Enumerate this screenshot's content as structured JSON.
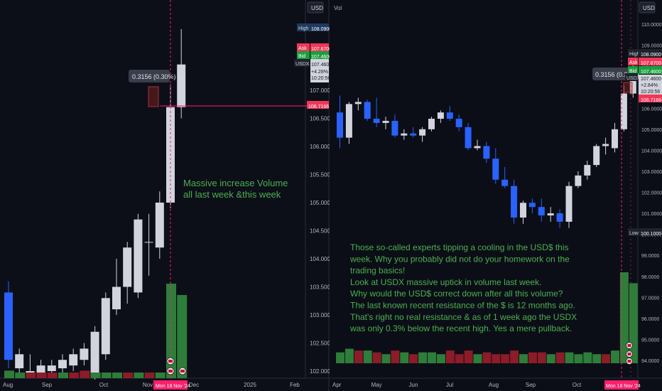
{
  "chart_data": [
    {
      "type": "candlestick",
      "title": "",
      "xlabel": "",
      "ylabel": "",
      "currency": "USD",
      "ylim": [
        101.9,
        111.1
      ],
      "y_ticks": [
        "102.0000",
        "102.5000",
        "103.0000",
        "103.5000",
        "104.0000",
        "104.5000",
        "105.0000",
        "105.5000",
        "106.0000",
        "106.5000",
        "107.0000"
      ],
      "x_ticks": [
        "Aug",
        "Sep",
        "Oct",
        "Nov",
        "Dec",
        "2025",
        "Feb"
      ],
      "x_marker": "Mon 18 Nov '24",
      "candles": [
        {
          "o": 103.4,
          "h": 103.6,
          "l": 102.05,
          "c": 102.2
        },
        {
          "o": 102.05,
          "h": 102.4,
          "l": 101.95,
          "c": 102.3
        },
        {
          "o": 101.95,
          "h": 102.3,
          "l": 101.9,
          "c": 102.0
        },
        {
          "o": 101.95,
          "h": 102.2,
          "l": 101.9,
          "c": 102.1
        },
        {
          "o": 102.0,
          "h": 102.2,
          "l": 101.9,
          "c": 102.1
        },
        {
          "o": 102.05,
          "h": 102.3,
          "l": 101.95,
          "c": 102.2
        },
        {
          "o": 102.1,
          "h": 102.4,
          "l": 102.0,
          "c": 102.3
        },
        {
          "o": 102.2,
          "h": 102.5,
          "l": 102.1,
          "c": 102.4
        },
        {
          "o": 101.9,
          "h": 102.8,
          "l": 101.85,
          "c": 102.7
        },
        {
          "o": 102.3,
          "h": 103.4,
          "l": 102.2,
          "c": 103.3
        },
        {
          "o": 103.1,
          "h": 104.0,
          "l": 103.0,
          "c": 103.5
        },
        {
          "o": 103.5,
          "h": 104.3,
          "l": 103.2,
          "c": 104.2
        },
        {
          "o": 103.4,
          "h": 104.8,
          "l": 103.3,
          "c": 104.7
        },
        {
          "o": 104.3,
          "h": 104.8,
          "l": 103.7,
          "c": 104.3
        },
        {
          "o": 104.2,
          "h": 105.2,
          "l": 104.0,
          "c": 105.0
        },
        {
          "o": 105.0,
          "h": 107.1,
          "l": 104.9,
          "c": 106.7
        },
        {
          "o": 106.7,
          "h": 108.09,
          "l": 106.5,
          "c": 107.46
        }
      ],
      "volume": [
        {
          "v": 8,
          "up": true
        },
        {
          "v": 6,
          "up": true
        },
        {
          "v": 6,
          "up": false
        },
        {
          "v": 6,
          "up": false
        },
        {
          "v": 6,
          "up": false
        },
        {
          "v": 6,
          "up": true
        },
        {
          "v": 6,
          "up": false
        },
        {
          "v": 8,
          "up": false
        },
        {
          "v": 6,
          "up": true
        },
        {
          "v": 6,
          "up": true
        },
        {
          "v": 6,
          "up": true
        },
        {
          "v": 6,
          "up": false
        },
        {
          "v": 6,
          "up": true
        },
        {
          "v": 6,
          "up": false
        },
        {
          "v": 6,
          "up": true
        },
        {
          "v": 100,
          "up": true
        },
        {
          "v": 88,
          "up": true
        }
      ],
      "annotations": [
        {
          "text": "0.3156 (0.30%)",
          "role": "measure"
        },
        {
          "text": "Massive increase Volume\nall last week &this week",
          "role": "note"
        }
      ],
      "price_labels": {
        "high": "108.0900",
        "ask": "107.6700",
        "bid": "107.4600",
        "usdx": "107.4600",
        "change": "+4.28%",
        "time": "10:20:56",
        "line": "106.7166"
      },
      "grid": false
    },
    {
      "type": "candlestick",
      "title": "",
      "xlabel": "",
      "ylabel": "",
      "currency": "USD",
      "volume_label": "Vol",
      "ylim": [
        93.9,
        110.4
      ],
      "y_ticks": [
        "94.0000",
        "95.0000",
        "96.0000",
        "97.0000",
        "98.0000",
        "99.0000",
        "100.0000",
        "101.0000",
        "102.0000",
        "103.0000",
        "104.0000",
        "105.0000",
        "106.0000",
        "107.0000",
        "108.0000",
        "109.0000",
        "110.0000"
      ],
      "x_ticks": [
        "Apr",
        "May",
        "Jun",
        "Jul",
        "Aug",
        "Sep",
        "Oct",
        "Nov"
      ],
      "x_marker": "Mon 18 Nov '24",
      "candles": [
        {
          "o": 105.8,
          "h": 106.6,
          "l": 104.1,
          "c": 104.6
        },
        {
          "o": 104.6,
          "h": 106.3,
          "l": 104.3,
          "c": 106.2
        },
        {
          "o": 106.2,
          "h": 106.5,
          "l": 105.9,
          "c": 106.3
        },
        {
          "o": 106.3,
          "h": 106.4,
          "l": 105.4,
          "c": 105.5
        },
        {
          "o": 105.5,
          "h": 106.5,
          "l": 105.1,
          "c": 105.3
        },
        {
          "o": 105.3,
          "h": 105.6,
          "l": 105.0,
          "c": 105.4
        },
        {
          "o": 105.4,
          "h": 105.7,
          "l": 104.6,
          "c": 104.7
        },
        {
          "o": 104.7,
          "h": 105.0,
          "l": 104.5,
          "c": 104.8
        },
        {
          "o": 104.8,
          "h": 105.1,
          "l": 104.6,
          "c": 104.7
        },
        {
          "o": 104.7,
          "h": 105.1,
          "l": 104.4,
          "c": 105.0
        },
        {
          "o": 105.0,
          "h": 105.6,
          "l": 104.9,
          "c": 105.5
        },
        {
          "o": 105.5,
          "h": 105.9,
          "l": 105.3,
          "c": 105.8
        },
        {
          "o": 105.8,
          "h": 106.1,
          "l": 105.4,
          "c": 105.5
        },
        {
          "o": 105.5,
          "h": 105.7,
          "l": 104.9,
          "c": 105.1
        },
        {
          "o": 105.1,
          "h": 105.3,
          "l": 104.0,
          "c": 104.1
        },
        {
          "o": 104.1,
          "h": 104.5,
          "l": 104.0,
          "c": 104.2
        },
        {
          "o": 104.2,
          "h": 104.4,
          "l": 103.4,
          "c": 103.6
        },
        {
          "o": 103.6,
          "h": 104.1,
          "l": 102.4,
          "c": 102.6
        },
        {
          "o": 102.6,
          "h": 103.2,
          "l": 102.2,
          "c": 102.3
        },
        {
          "o": 102.3,
          "h": 102.6,
          "l": 100.5,
          "c": 100.8
        },
        {
          "o": 100.8,
          "h": 101.6,
          "l": 100.5,
          "c": 101.5
        },
        {
          "o": 101.5,
          "h": 101.7,
          "l": 101.0,
          "c": 101.3
        },
        {
          "o": 101.3,
          "h": 101.7,
          "l": 100.6,
          "c": 100.9
        },
        {
          "o": 100.9,
          "h": 101.3,
          "l": 100.6,
          "c": 101.0
        },
        {
          "o": 101.0,
          "h": 101.2,
          "l": 100.3,
          "c": 100.6
        },
        {
          "o": 100.6,
          "h": 102.5,
          "l": 100.3,
          "c": 102.3
        },
        {
          "o": 102.3,
          "h": 103.0,
          "l": 102.2,
          "c": 102.8
        },
        {
          "o": 102.8,
          "h": 103.5,
          "l": 102.6,
          "c": 103.3
        },
        {
          "o": 103.3,
          "h": 104.3,
          "l": 103.2,
          "c": 104.2
        },
        {
          "o": 104.2,
          "h": 104.6,
          "l": 103.8,
          "c": 104.3
        },
        {
          "o": 104.1,
          "h": 105.3,
          "l": 103.9,
          "c": 105.0
        },
        {
          "o": 105.0,
          "h": 107.1,
          "l": 104.9,
          "c": 106.7
        },
        {
          "o": 106.7,
          "h": 108.09,
          "l": 106.5,
          "c": 107.46
        }
      ],
      "volume": [
        {
          "v": 12,
          "up": true
        },
        {
          "v": 16,
          "up": true
        },
        {
          "v": 14,
          "up": false
        },
        {
          "v": 14,
          "up": true
        },
        {
          "v": 12,
          "up": false
        },
        {
          "v": 10,
          "up": true
        },
        {
          "v": 14,
          "up": false
        },
        {
          "v": 12,
          "up": true
        },
        {
          "v": 10,
          "up": false
        },
        {
          "v": 12,
          "up": true
        },
        {
          "v": 12,
          "up": true
        },
        {
          "v": 10,
          "up": true
        },
        {
          "v": 14,
          "up": false
        },
        {
          "v": 10,
          "up": false
        },
        {
          "v": 14,
          "up": false
        },
        {
          "v": 10,
          "up": true
        },
        {
          "v": 12,
          "up": false
        },
        {
          "v": 10,
          "up": false
        },
        {
          "v": 10,
          "up": false
        },
        {
          "v": 14,
          "up": false
        },
        {
          "v": 10,
          "up": true
        },
        {
          "v": 12,
          "up": false
        },
        {
          "v": 12,
          "up": false
        },
        {
          "v": 10,
          "up": true
        },
        {
          "v": 12,
          "up": false
        },
        {
          "v": 12,
          "up": true
        },
        {
          "v": 10,
          "up": true
        },
        {
          "v": 12,
          "up": true
        },
        {
          "v": 10,
          "up": true
        },
        {
          "v": 10,
          "up": false
        },
        {
          "v": 14,
          "up": true
        },
        {
          "v": 100,
          "up": true
        },
        {
          "v": 88,
          "up": true
        }
      ],
      "annotations": [
        {
          "text": "0.3156 (0.30%)",
          "role": "measure"
        },
        {
          "text": "Those so-called experts tipping a cooling in the USD$ this\nweek. Why you probably did not do your homework on the\ntrading basics!\nLook at USDX massive uptick in volume last week.\nWhy would the USD$ correct down after all this volume?\nThe last known recent resistance of the $ is 12 months ago.\nThat's right no real resistance & as of 1 week ago the USDX\nwas only 0.3% below the recent high. Yes a mere pullback.",
          "role": "note"
        }
      ],
      "price_labels": {
        "high": "108.0900",
        "ask": "107.6700",
        "bid": "107.4600",
        "usdx": "107.4600",
        "change": "+2.84%",
        "time": "10:20:56",
        "line": "106.7166",
        "low": "100.1000"
      },
      "grid": false
    }
  ],
  "colors": {
    "up": "#d1d4dc",
    "down": "#2962ff",
    "vol_up": "#2e7d3a",
    "vol_down": "#8b1c28",
    "note": "#4caf50",
    "marker": "#ff1f6b"
  }
}
